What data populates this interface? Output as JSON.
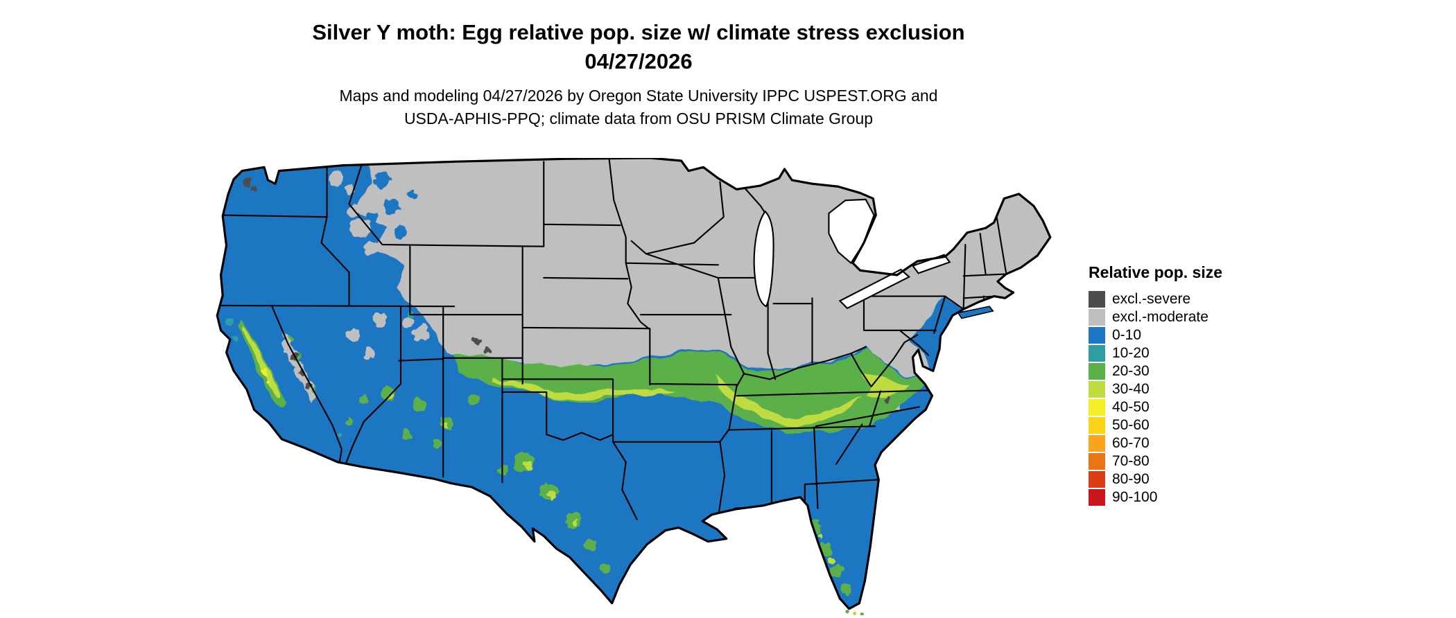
{
  "title": {
    "line1": "Silver Y moth: Egg relative pop. size w/ climate stress exclusion",
    "line2": "04/27/2026"
  },
  "subtitle": {
    "line1": "Maps and modeling 04/27/2026 by Oregon State University IPPC USPEST.ORG and",
    "line2": "USDA-APHIS-PPQ; climate data from OSU PRISM Climate Group"
  },
  "legend": {
    "title": "Relative pop. size",
    "items": [
      {
        "label": "excl.-severe",
        "color": "#4d4d4d"
      },
      {
        "label": "excl.-moderate",
        "color": "#bfbfbf"
      },
      {
        "label": "0-10",
        "color": "#1d76c2"
      },
      {
        "label": "10-20",
        "color": "#2d9fa3"
      },
      {
        "label": "20-30",
        "color": "#5cb04a"
      },
      {
        "label": "30-40",
        "color": "#bedc3f"
      },
      {
        "label": "40-50",
        "color": "#f4ee27"
      },
      {
        "label": "50-60",
        "color": "#fbd215"
      },
      {
        "label": "60-70",
        "color": "#f8a41d"
      },
      {
        "label": "70-80",
        "color": "#ea7517"
      },
      {
        "label": "80-90",
        "color": "#d93e14"
      },
      {
        "label": "90-100",
        "color": "#c8161c"
      }
    ]
  },
  "map": {
    "region": "Continental United States",
    "palette": {
      "excl_severe": "#4d4d4d",
      "excl_moderate": "#bfbfbf",
      "b0_10": "#1d76c2",
      "b10_20": "#2d9fa3",
      "b20_30": "#5cb04a",
      "b30_40": "#bedc3f",
      "b40_50": "#f4ee27",
      "b50_60": "#fbd215",
      "b60_70": "#f8a41d",
      "b70_80": "#ea7517",
      "b80_90": "#d93e14",
      "b90_100": "#c8161c",
      "border": "#000000",
      "water": "#ffffff"
    }
  }
}
